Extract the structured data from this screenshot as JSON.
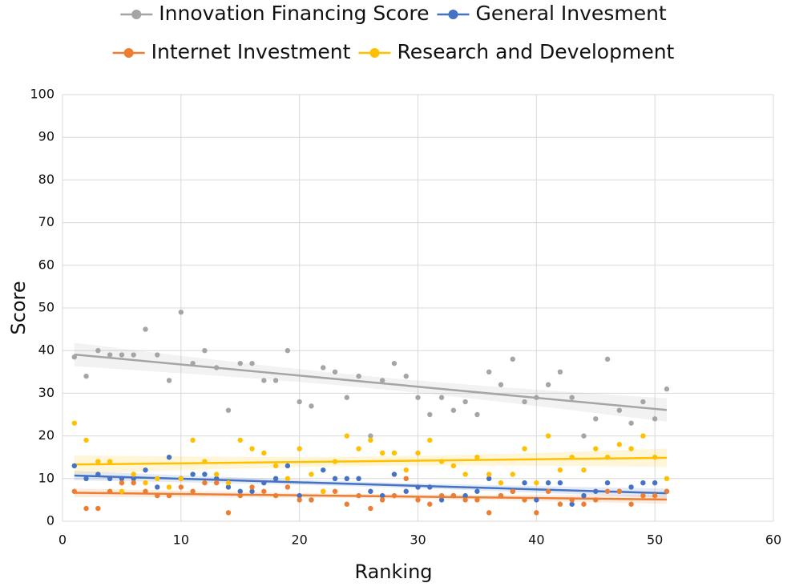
{
  "chart_data": {
    "type": "scatter",
    "xlabel": "Ranking",
    "ylabel": "Score",
    "x": [
      1,
      2,
      3,
      4,
      5,
      6,
      7,
      8,
      9,
      10,
      11,
      12,
      13,
      14,
      15,
      16,
      17,
      18,
      19,
      20,
      21,
      22,
      23,
      24,
      25,
      26,
      27,
      28,
      29,
      30,
      31,
      32,
      33,
      34,
      35,
      36,
      37,
      38,
      39,
      40,
      41,
      42,
      43,
      44,
      45,
      46,
      47,
      48,
      49,
      50,
      51
    ],
    "series": [
      {
        "name": "Innovation Financing Score",
        "color": "#a5a5a5",
        "values": [
          38.5,
          34,
          40,
          39,
          39,
          39,
          45,
          39,
          33,
          49,
          37,
          40,
          36,
          26,
          37,
          37,
          33,
          33,
          40,
          28,
          27,
          36,
          35,
          29,
          34,
          20,
          33,
          37,
          34,
          29,
          25,
          29,
          26,
          28,
          25,
          35,
          32,
          38,
          28,
          29,
          32,
          35,
          29,
          20,
          24,
          38,
          26,
          23,
          28,
          24,
          31
        ]
      },
      {
        "name": "General Invesment",
        "color": "#4472c4",
        "values": [
          13,
          10,
          11,
          10,
          10,
          10,
          12,
          8,
          15,
          10,
          11,
          11,
          10,
          8,
          7,
          7,
          9,
          10,
          13,
          6,
          5,
          12,
          10,
          10,
          10,
          7,
          6,
          11,
          7,
          8,
          8,
          5,
          6,
          6,
          7,
          10,
          6,
          7,
          9,
          5,
          9,
          9,
          4,
          6,
          7,
          9,
          7,
          8,
          9,
          9,
          7
        ]
      },
      {
        "name": "Internet Investment",
        "color": "#ed7d31",
        "values": [
          7,
          3,
          3,
          7,
          9,
          9,
          7,
          6,
          6,
          8,
          7,
          9,
          9,
          2,
          6,
          8,
          7,
          6,
          8,
          5,
          5,
          7,
          7,
          4,
          6,
          3,
          5,
          6,
          10,
          5,
          4,
          6,
          6,
          5,
          5,
          2,
          6,
          7,
          5,
          2,
          7,
          4,
          5,
          4,
          5,
          7,
          7,
          4,
          6,
          6,
          7
        ]
      },
      {
        "name": "Research and Development",
        "color": "#ffc000",
        "values": [
          23,
          19,
          14,
          14,
          7,
          11,
          9,
          10,
          8,
          10,
          19,
          14,
          11,
          9,
          19,
          17,
          16,
          13,
          10,
          17,
          11,
          7,
          14,
          20,
          17,
          19,
          16,
          16,
          12,
          16,
          19,
          14,
          13,
          11,
          15,
          11,
          9,
          11,
          17,
          9,
          20,
          12,
          15,
          12,
          17,
          15,
          18,
          17,
          20,
          15,
          10
        ]
      }
    ],
    "xlim": [
      0,
      60
    ],
    "xticks": [
      0,
      10,
      20,
      30,
      40,
      50,
      60
    ],
    "ylim": [
      0,
      100
    ],
    "yticks": [
      0,
      10,
      20,
      30,
      40,
      50,
      60,
      70,
      80,
      90,
      100
    ],
    "grid": true,
    "legend": "top",
    "trendline": true
  }
}
